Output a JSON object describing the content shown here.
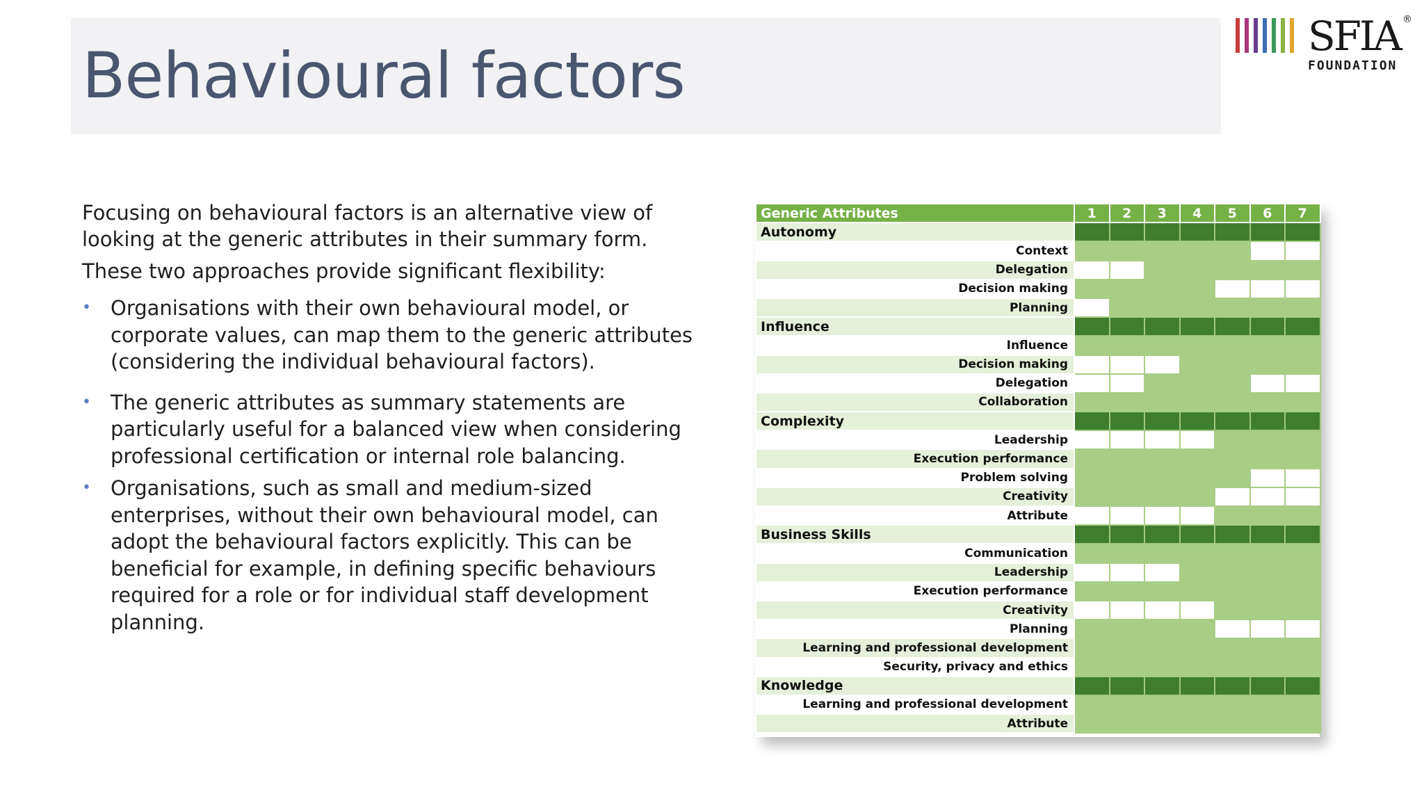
{
  "title": "Behavioural factors",
  "logo": {
    "word": "SFIA",
    "registered": "®",
    "sub": "FOUNDATION",
    "stripe_colors": [
      "#c63f3d",
      "#a6387a",
      "#6a3d8f",
      "#3c6fb3",
      "#3a9a5c",
      "#8ab33f",
      "#e0a52a"
    ]
  },
  "paragraphs": [
    "Focusing on behavioural factors is an alternative view of looking at the generic attributes in their summary form.",
    "These two approaches provide significant flexibility:"
  ],
  "bullets": [
    "Organisations with their own behavioural model, or corporate values, can map them to the generic attributes (considering the individual behavioural factors).",
    "The generic attributes as summary statements are particularly useful for a balanced view when considering professional certification or internal role balancing.",
    "Organisations, such as small and medium-sized enterprises, without their own behavioural model, can adopt the behavioural factors explicitly. This can be beneficial for example, in defining specific behaviours required for a role or for individual staff development planning."
  ],
  "bullet_glyph": "•",
  "matrix": {
    "header": "Generic Attributes",
    "levels": [
      "1",
      "2",
      "3",
      "4",
      "5",
      "6",
      "7"
    ],
    "groups": [
      {
        "name": "Autonomy",
        "rows": [
          {
            "label": "Context",
            "cells": [
              1,
              1,
              1,
              1,
              1,
              0,
              0
            ]
          },
          {
            "label": "Delegation",
            "cells": [
              0,
              0,
              1,
              1,
              1,
              1,
              1
            ]
          },
          {
            "label": "Decision making",
            "cells": [
              1,
              1,
              1,
              1,
              0,
              0,
              0
            ]
          },
          {
            "label": "Planning",
            "cells": [
              0,
              1,
              1,
              1,
              1,
              1,
              1
            ]
          }
        ]
      },
      {
        "name": "Influence",
        "rows": [
          {
            "label": "Influence",
            "cells": [
              1,
              1,
              1,
              1,
              1,
              1,
              1
            ]
          },
          {
            "label": "Decision making",
            "cells": [
              0,
              0,
              0,
              1,
              1,
              1,
              1
            ]
          },
          {
            "label": "Delegation",
            "cells": [
              0,
              0,
              1,
              1,
              1,
              0,
              0
            ]
          },
          {
            "label": "Collaboration",
            "cells": [
              1,
              1,
              1,
              1,
              1,
              1,
              1
            ]
          }
        ]
      },
      {
        "name": "Complexity",
        "rows": [
          {
            "label": "Leadership",
            "cells": [
              0,
              0,
              0,
              0,
              1,
              1,
              1
            ]
          },
          {
            "label": "Execution performance",
            "cells": [
              1,
              1,
              1,
              1,
              1,
              1,
              1
            ]
          },
          {
            "label": "Problem solving",
            "cells": [
              1,
              1,
              1,
              1,
              1,
              0,
              0
            ]
          },
          {
            "label": "Creativity",
            "cells": [
              1,
              1,
              1,
              1,
              0,
              0,
              0
            ]
          },
          {
            "label": "Attribute",
            "cells": [
              0,
              0,
              0,
              0,
              1,
              1,
              1
            ]
          }
        ]
      },
      {
        "name": "Business Skills",
        "rows": [
          {
            "label": "Communication",
            "cells": [
              1,
              1,
              1,
              1,
              1,
              1,
              1
            ]
          },
          {
            "label": "Leadership",
            "cells": [
              0,
              0,
              0,
              1,
              1,
              1,
              1
            ]
          },
          {
            "label": "Execution performance",
            "cells": [
              1,
              1,
              1,
              1,
              1,
              1,
              1
            ]
          },
          {
            "label": "Creativity",
            "cells": [
              0,
              0,
              0,
              0,
              1,
              1,
              1
            ]
          },
          {
            "label": "Planning",
            "cells": [
              1,
              1,
              1,
              1,
              0,
              0,
              0
            ]
          },
          {
            "label": "Learning and professional development",
            "cells": [
              1,
              1,
              1,
              1,
              1,
              1,
              1
            ]
          },
          {
            "label": "Security, privacy and ethics",
            "cells": [
              1,
              1,
              1,
              1,
              1,
              1,
              1
            ]
          }
        ]
      },
      {
        "name": "Knowledge",
        "rows": [
          {
            "label": "Learning and professional development",
            "cells": [
              1,
              1,
              1,
              1,
              1,
              1,
              1
            ]
          },
          {
            "label": "Attribute",
            "cells": [
              1,
              1,
              1,
              1,
              1,
              1,
              1
            ]
          }
        ]
      }
    ]
  }
}
